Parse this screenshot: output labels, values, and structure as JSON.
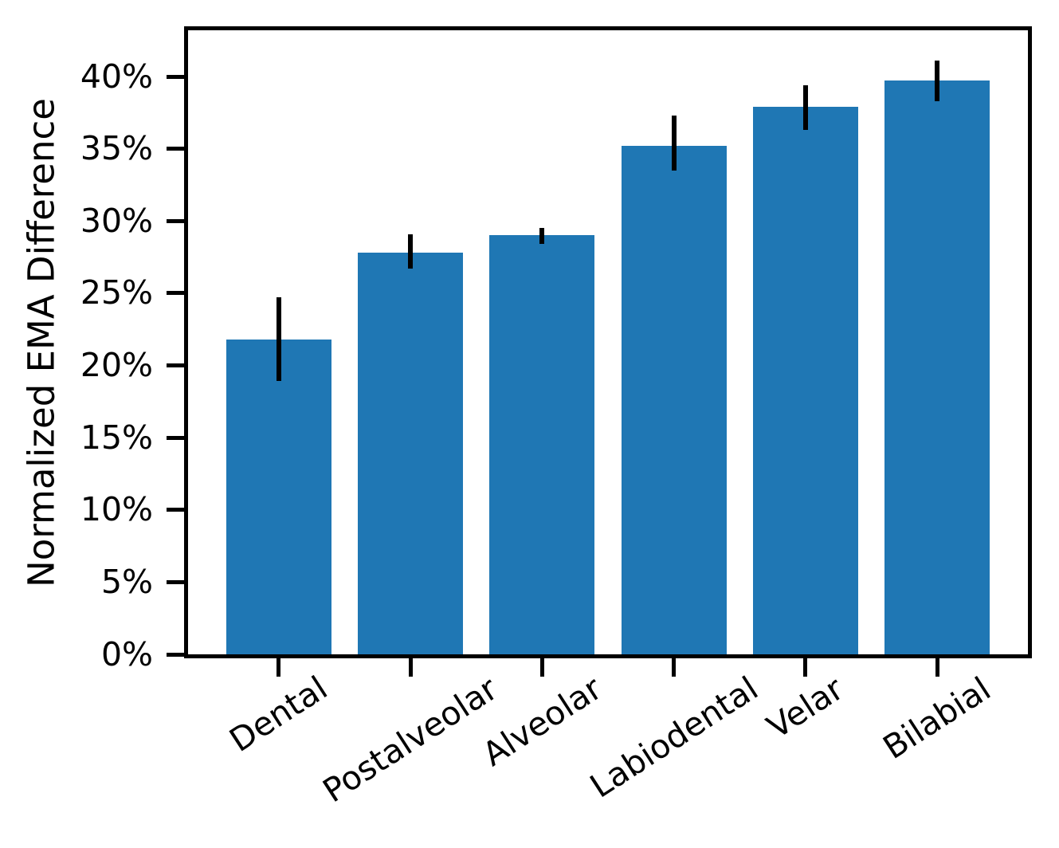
{
  "chart_data": {
    "type": "bar",
    "title": "",
    "xlabel": "",
    "ylabel": "Normalized EMA Difference",
    "categories": [
      "Dental",
      "Postalveolar",
      "Alveolar",
      "Labiodental",
      "Velar",
      "Bilabial"
    ],
    "values": [
      21.8,
      27.8,
      29.0,
      35.2,
      37.9,
      39.7
    ],
    "error_low": [
      18.9,
      26.7,
      28.4,
      33.5,
      36.3,
      38.3
    ],
    "error_high": [
      24.7,
      29.1,
      29.5,
      37.3,
      39.4,
      41.1
    ],
    "value_unit": "percent",
    "ylim": [
      0,
      43.2
    ],
    "yticks": [
      {
        "value": 0,
        "label": "0%"
      },
      {
        "value": 5,
        "label": "5%"
      },
      {
        "value": 10,
        "label": "10%"
      },
      {
        "value": 15,
        "label": "15%"
      },
      {
        "value": 20,
        "label": "20%"
      },
      {
        "value": 25,
        "label": "25%"
      },
      {
        "value": 30,
        "label": "30%"
      },
      {
        "value": 35,
        "label": "35%"
      },
      {
        "value": 40,
        "label": "40%"
      }
    ],
    "grid": false,
    "legend": null,
    "bar_color": "#1f77b4",
    "error_bar_color": "#000000",
    "axis_color": "#000000",
    "background_color": "#ffffff",
    "x_tick_label_rotation_deg": 33
  }
}
